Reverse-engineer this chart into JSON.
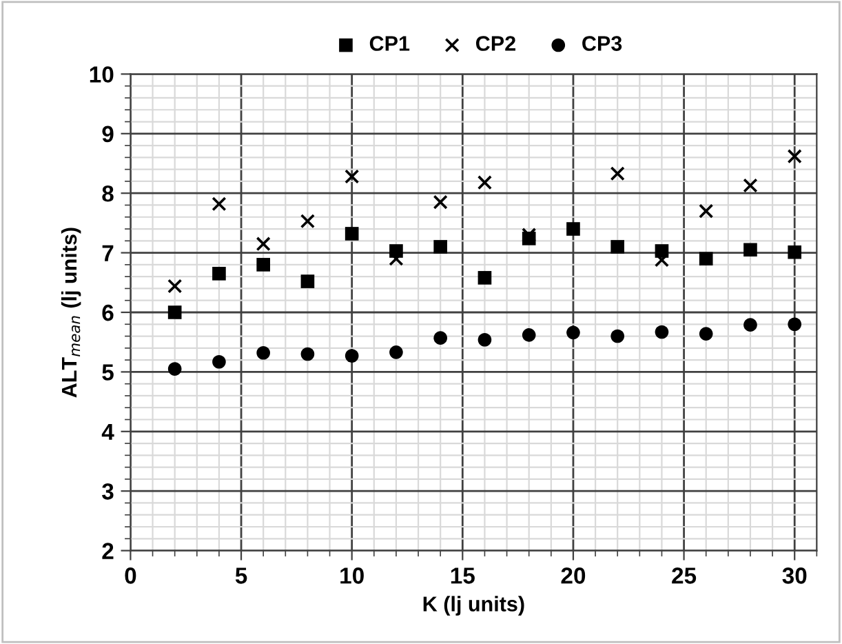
{
  "chart_data": {
    "type": "scatter",
    "xlabel": "K (lj units)",
    "ylabel": "ALT$_{mean}$ (lj units)",
    "x": [
      2,
      4,
      6,
      8,
      10,
      12,
      14,
      16,
      18,
      20,
      22,
      24,
      26,
      28,
      30
    ],
    "series": [
      {
        "name": "CP1",
        "color": "#000000",
        "marker": "square",
        "values": [
          6.0,
          6.65,
          6.8,
          6.52,
          7.32,
          7.03,
          7.1,
          6.58,
          7.24,
          7.4,
          7.1,
          7.03,
          6.9,
          7.05,
          7.01
        ]
      },
      {
        "name": "CP2",
        "color": "#000000",
        "marker": "cross",
        "values": [
          6.44,
          7.82,
          7.15,
          7.53,
          8.28,
          6.9,
          7.85,
          8.18,
          7.3,
          null,
          8.33,
          6.88,
          7.7,
          8.13,
          8.62
        ]
      },
      {
        "name": "CP3",
        "color": "#000000",
        "marker": "circle",
        "values": [
          5.05,
          5.17,
          5.32,
          5.3,
          5.27,
          5.33,
          5.57,
          5.54,
          5.62,
          5.66,
          5.6,
          5.67,
          5.64,
          5.79,
          5.8
        ]
      }
    ],
    "xlim": [
      0,
      31
    ],
    "xticks": [
      0,
      5,
      10,
      15,
      20,
      25,
      30
    ],
    "ylim": [
      2,
      10
    ],
    "yticks": [
      2,
      3,
      4,
      5,
      6,
      7,
      8,
      9,
      10
    ],
    "grid": true,
    "legend": "top"
  }
}
